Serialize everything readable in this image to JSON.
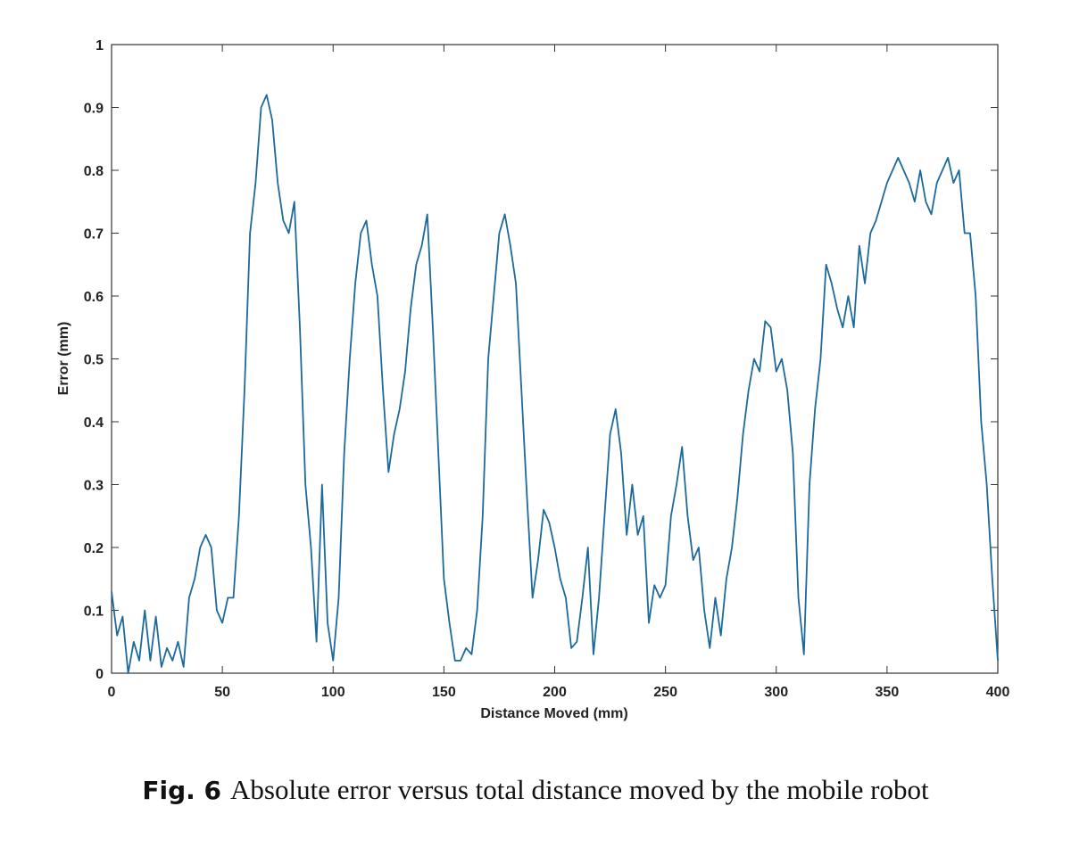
{
  "chart_data": {
    "type": "line",
    "xlabel": "Distance Moved (mm)",
    "ylabel": "Error (mm)",
    "xlim": [
      0,
      400
    ],
    "ylim": [
      0,
      1
    ],
    "xticks": [
      0,
      50,
      100,
      150,
      200,
      250,
      300,
      350,
      400
    ],
    "yticks": [
      0,
      0.1,
      0.2,
      0.3,
      0.4,
      0.5,
      0.6,
      0.7,
      0.8,
      0.9,
      1
    ],
    "grid": false,
    "x": [
      0,
      2.5,
      5,
      7.5,
      10,
      12.5,
      15,
      17.5,
      20,
      22.5,
      25,
      27.5,
      30,
      32.5,
      35,
      37.5,
      40,
      42.5,
      45,
      47.5,
      50,
      52.5,
      55,
      57.5,
      60,
      62.5,
      65,
      67.5,
      70,
      72.5,
      75,
      77.5,
      80,
      82.5,
      85,
      87.5,
      90,
      92.5,
      95,
      97.5,
      100,
      102.5,
      105,
      107.5,
      110,
      112.5,
      115,
      117.5,
      120,
      122.5,
      125,
      127.5,
      130,
      132.5,
      135,
      137.5,
      140,
      142.5,
      145,
      147.5,
      150,
      152.5,
      155,
      157.5,
      160,
      162.5,
      165,
      167.5,
      170,
      172.5,
      175,
      177.5,
      180,
      182.5,
      185,
      187.5,
      190,
      192.5,
      195,
      197.5,
      200,
      202.5,
      205,
      207.5,
      210,
      212.5,
      215,
      217.5,
      220,
      222.5,
      225,
      227.5,
      230,
      232.5,
      235,
      237.5,
      240,
      242.5,
      245,
      247.5,
      250,
      252.5,
      255,
      257.5,
      260,
      262.5,
      265,
      267.5,
      270,
      272.5,
      275,
      277.5,
      280,
      282.5,
      285,
      287.5,
      290,
      292.5,
      295,
      297.5,
      300,
      302.5,
      305,
      307.5,
      310,
      312.5,
      315,
      317.5,
      320,
      322.5,
      325,
      327.5,
      330,
      332.5,
      335,
      337.5,
      340,
      342.5,
      345,
      347.5,
      350,
      352.5,
      355,
      357.5,
      360,
      362.5,
      365,
      367.5,
      370,
      372.5,
      375,
      377.5,
      380,
      382.5,
      385,
      387.5,
      390,
      392.5,
      395,
      397.5,
      400
    ],
    "series": [
      {
        "color": "#1c6a9c",
        "values": [
          0.13,
          0.06,
          0.09,
          0.0,
          0.05,
          0.02,
          0.1,
          0.02,
          0.09,
          0.01,
          0.04,
          0.02,
          0.05,
          0.01,
          0.12,
          0.15,
          0.2,
          0.22,
          0.2,
          0.1,
          0.08,
          0.12,
          0.12,
          0.25,
          0.45,
          0.7,
          0.78,
          0.9,
          0.92,
          0.88,
          0.78,
          0.72,
          0.7,
          0.75,
          0.55,
          0.3,
          0.2,
          0.05,
          0.3,
          0.08,
          0.02,
          0.12,
          0.35,
          0.5,
          0.62,
          0.7,
          0.72,
          0.65,
          0.6,
          0.45,
          0.32,
          0.38,
          0.42,
          0.48,
          0.58,
          0.65,
          0.68,
          0.73,
          0.55,
          0.35,
          0.15,
          0.08,
          0.02,
          0.02,
          0.04,
          0.03,
          0.1,
          0.25,
          0.5,
          0.6,
          0.7,
          0.73,
          0.68,
          0.62,
          0.45,
          0.28,
          0.12,
          0.18,
          0.26,
          0.24,
          0.2,
          0.15,
          0.12,
          0.04,
          0.05,
          0.12,
          0.2,
          0.03,
          0.12,
          0.25,
          0.38,
          0.42,
          0.35,
          0.22,
          0.3,
          0.22,
          0.25,
          0.08,
          0.14,
          0.12,
          0.14,
          0.25,
          0.3,
          0.36,
          0.25,
          0.18,
          0.2,
          0.1,
          0.04,
          0.12,
          0.06,
          0.15,
          0.2,
          0.28,
          0.38,
          0.45,
          0.5,
          0.48,
          0.56,
          0.55,
          0.48,
          0.5,
          0.45,
          0.35,
          0.12,
          0.03,
          0.3,
          0.42,
          0.5,
          0.65,
          0.62,
          0.58,
          0.55,
          0.6,
          0.55,
          0.68,
          0.62,
          0.7,
          0.72,
          0.75,
          0.78,
          0.8,
          0.82,
          0.8,
          0.78,
          0.75,
          0.8,
          0.75,
          0.73,
          0.78,
          0.8,
          0.82,
          0.78,
          0.8,
          0.7,
          0.7,
          0.6,
          0.4,
          0.3,
          0.15,
          0.02
        ]
      }
    ]
  },
  "caption": {
    "label": "Fig. 6",
    "text": "Absolute error versus total distance moved by the mobile robot"
  }
}
